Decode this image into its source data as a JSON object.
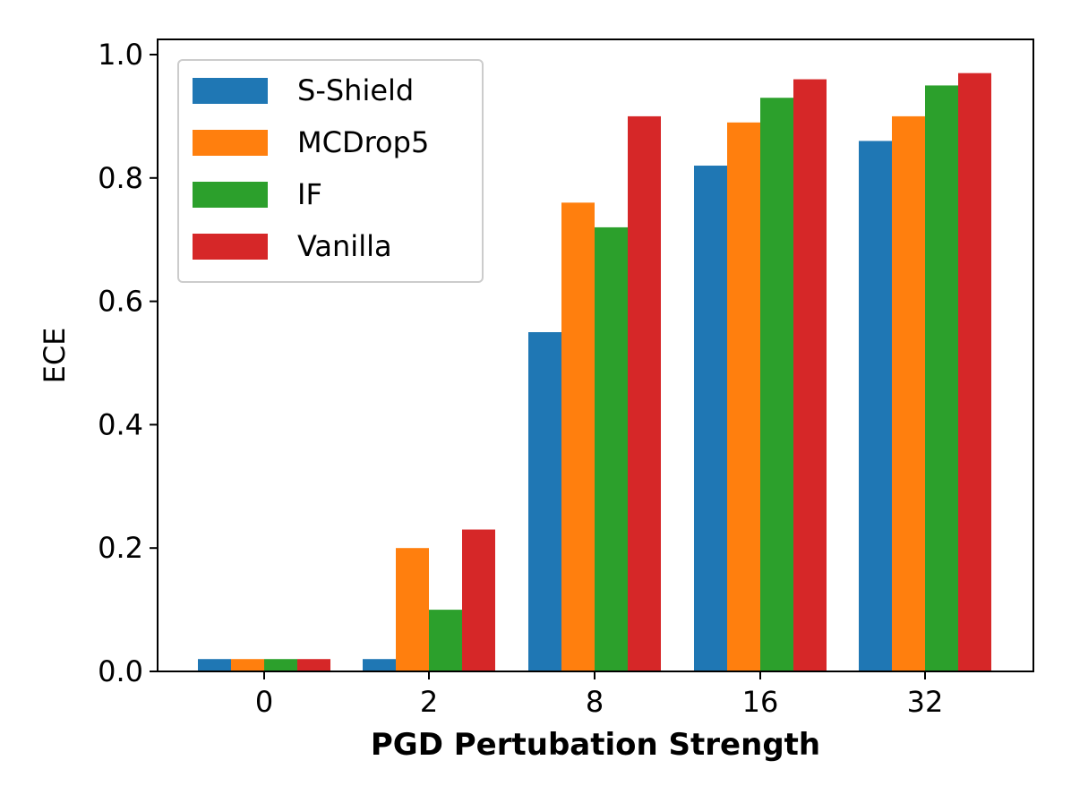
{
  "chart_data": {
    "type": "bar",
    "title": "",
    "xlabel": "PGD Pertubation Strength",
    "ylabel": "ECE",
    "categories": [
      "0",
      "2",
      "8",
      "16",
      "32"
    ],
    "ylim": [
      0.0,
      1.0
    ],
    "yticks": [
      "0.0",
      "0.2",
      "0.4",
      "0.6",
      "0.8",
      "1.0"
    ],
    "grid": false,
    "legend_position": "top-left",
    "series": [
      {
        "name": "S-Shield",
        "color": "#1f77b4",
        "values": [
          0.02,
          0.02,
          0.55,
          0.82,
          0.86
        ]
      },
      {
        "name": "MCDrop5",
        "color": "#ff7f0e",
        "values": [
          0.02,
          0.2,
          0.76,
          0.89,
          0.9
        ]
      },
      {
        "name": "IF",
        "color": "#2ca02c",
        "values": [
          0.02,
          0.1,
          0.72,
          0.93,
          0.95
        ]
      },
      {
        "name": "Vanilla",
        "color": "#d62728",
        "values": [
          0.02,
          0.23,
          0.9,
          0.96,
          0.97
        ]
      }
    ]
  }
}
